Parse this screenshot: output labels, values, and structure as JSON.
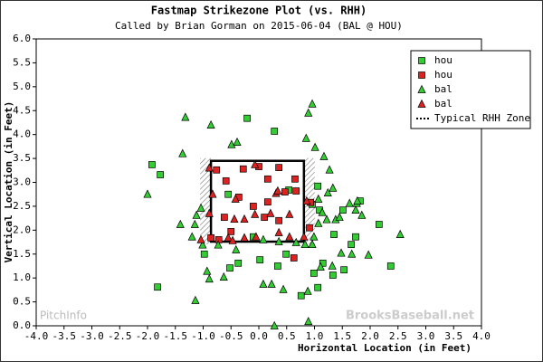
{
  "chart_data": {
    "type": "scatter",
    "title": "Fastmap Strikezone Plot (vs. RHH)",
    "subtitle": "Called by Brian Gorman on 2015-06-04 (BAL @ HOU)",
    "x_label": "Horizontal Location (in Feet)",
    "y_label": "Vertical Location (in Feet)",
    "xlim": [
      -4,
      4
    ],
    "ylim": [
      0,
      6
    ],
    "xticks": [
      {
        "value": -4,
        "label": "-4.0"
      },
      -3.5,
      {
        "value": -3,
        "label": "-3.0"
      },
      -2.5,
      {
        "value": -2,
        "label": "-2.0"
      },
      -1.5,
      {
        "value": -1,
        "label": "-1.0"
      },
      -0.5,
      {
        "value": 0,
        "label": "0.0"
      },
      0.5,
      {
        "value": 1,
        "label": "1.0"
      },
      1.5,
      {
        "value": 2,
        "label": "2.0"
      },
      2.5,
      {
        "value": 3,
        "label": "3.0"
      },
      3.5,
      {
        "value": 4,
        "label": "4.0"
      }
    ],
    "yticks": [
      {
        "value": 0,
        "label": "0.0"
      },
      0.5,
      {
        "value": 1,
        "label": "1.0"
      },
      1.5,
      {
        "value": 2,
        "label": "2.0"
      },
      2.5,
      {
        "value": 3,
        "label": "3.0"
      },
      3.5,
      {
        "value": 4,
        "label": "4.0"
      },
      4.5,
      {
        "value": 5,
        "label": "5.0"
      },
      5.5,
      {
        "value": 6,
        "label": "6.0"
      }
    ],
    "legend": "upper right",
    "zone_label": "Typical RHH Zone",
    "zone_x": [
      -0.86,
      0.81
    ],
    "zone_y": [
      1.76,
      3.45
    ],
    "annotations": [
      "PitchInfo",
      "BrooksBaseball.net"
    ],
    "series": [
      {
        "name": "hou",
        "marker": "square",
        "color": "#33cc33",
        "x": [
          -1.92,
          -1.77,
          -0.21,
          0.28,
          -1.82,
          -0.98,
          -0.52,
          -0.37,
          0.02,
          0.34,
          0.49,
          0.76,
          1.06,
          0.99,
          1.15,
          1.33,
          1.66,
          1.53,
          1.74,
          1.09,
          1.35,
          1.51,
          1.82,
          2.16,
          2.37,
          0.96,
          1.06,
          -0.1,
          0.54,
          -0.55
        ],
        "values": [
          3.37,
          3.16,
          4.34,
          4.07,
          0.81,
          1.5,
          1.21,
          1.31,
          1.38,
          1.25,
          1.5,
          0.63,
          0.8,
          1.1,
          1.31,
          1.06,
          1.7,
          1.17,
          1.86,
          2.42,
          1.91,
          2.42,
          2.61,
          2.12,
          1.25,
          2.54,
          2.92,
          1.86,
          2.84,
          2.75
        ]
      },
      {
        "name": "hou",
        "marker": "square",
        "color": "#dd2222",
        "x": [
          -0.76,
          -0.28,
          0,
          0.36,
          -0.59,
          0.16,
          0.65,
          0.47,
          0.67,
          -0.36,
          0.16,
          0.93,
          -0.62,
          -0.1,
          0.1,
          -0.5,
          0.36,
          0.63,
          0.91,
          -0.86,
          -0.72
        ],
        "values": [
          3.26,
          3.28,
          3.33,
          3.31,
          3.03,
          3.07,
          3.07,
          2.8,
          2.82,
          2.69,
          2.59,
          2.58,
          2.27,
          2.5,
          2.27,
          1.97,
          2.2,
          1.42,
          2.05,
          1.84,
          1.8
        ]
      },
      {
        "name": "bal",
        "marker": "triangle",
        "color": "#33cc33",
        "x": [
          -1.32,
          -0.86,
          0.96,
          0.89,
          -1.37,
          -2.0,
          -0.49,
          -0.39,
          0.85,
          1.01,
          1.17,
          1.27,
          1.33,
          1.24,
          1.07,
          1.14,
          1.22,
          1.38,
          1.45,
          1.07,
          0.99,
          0.83,
          1.63,
          1.74,
          1.85,
          1.76,
          1.77,
          -1.41,
          -1.15,
          -1.12,
          -1.04,
          -1.2,
          -1.01,
          -0.73,
          -0.41,
          0.08,
          0.36,
          0.67,
          0.96,
          1.32,
          1.48,
          1.67,
          1.97,
          2.54,
          -0.93,
          -0.89,
          -0.63,
          0.08,
          0.23,
          0.44,
          1.11,
          0.89,
          0.28,
          -1.14,
          0.88
        ],
        "values": [
          4.36,
          4.2,
          4.64,
          4.45,
          3.6,
          2.75,
          3.79,
          3.84,
          3.92,
          3.73,
          3.54,
          3.26,
          2.88,
          2.78,
          2.65,
          2.37,
          2.22,
          2.22,
          2.27,
          2.14,
          1.86,
          1.7,
          2.56,
          2.42,
          2.31,
          2.56,
          2.61,
          2.12,
          2.12,
          2.31,
          2.46,
          1.86,
          1.69,
          1.69,
          1.59,
          1.8,
          1.76,
          1.74,
          1.7,
          1.25,
          1.52,
          1.5,
          1.48,
          1.91,
          1.14,
          0.98,
          1.02,
          0.87,
          0.87,
          0.76,
          1.23,
          0.09,
          0,
          0.53,
          0.72
        ]
      },
      {
        "name": "bal",
        "marker": "triangle",
        "color": "#dd2222",
        "x": [
          -0.89,
          -0.07,
          -0.83,
          0.31,
          0.34,
          -0.42,
          -0.89,
          -0.44,
          -0.26,
          -0.07,
          0.21,
          0.55,
          0.86,
          0.36,
          -0.55,
          -0.47,
          -0.26,
          -0.05,
          0.55,
          0.81,
          -1.04
        ],
        "values": [
          3.3,
          3.37,
          2.75,
          2.77,
          2.82,
          2.65,
          2.35,
          2.23,
          2.23,
          2.33,
          2.35,
          2.33,
          2.61,
          1.95,
          1.84,
          1.78,
          1.84,
          1.86,
          1.86,
          1.86,
          1.8
        ]
      }
    ]
  }
}
